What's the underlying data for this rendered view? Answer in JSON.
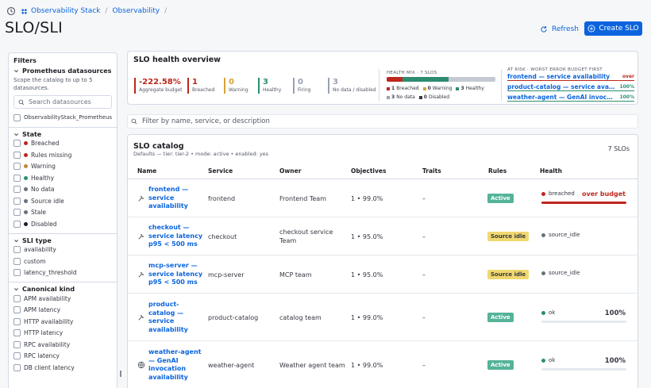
{
  "breadcrumb": {
    "items": [
      "Observability Stack",
      "Observability"
    ]
  },
  "page": {
    "title": "SLO/SLI"
  },
  "actions": {
    "refresh": "Refresh",
    "create": "Create SLO"
  },
  "sidebar": {
    "title": "Filters",
    "datasources": {
      "heading": "Prometheus datasources",
      "help": "Scope the catalog to up to 5 datasources.",
      "search_placeholder": "Search datasources",
      "items": [
        "ObservabilityStack_Prometheus"
      ]
    },
    "state": {
      "heading": "State",
      "items": [
        {
          "label": "Breached",
          "color": "#bd271e"
        },
        {
          "label": "Rules missing",
          "color": "#bd271e"
        },
        {
          "label": "Warning",
          "color": "#c4863a"
        },
        {
          "label": "Healthy",
          "color": "#2d8c6f"
        },
        {
          "label": "No data",
          "color": "#69707d"
        },
        {
          "label": "Source idle",
          "color": "#69707d"
        },
        {
          "label": "Stale",
          "color": "#69707d"
        },
        {
          "label": "Disabled",
          "color": "#1d1e24"
        }
      ]
    },
    "sli_type": {
      "heading": "SLI type",
      "items": [
        "availability",
        "custom",
        "latency_threshold"
      ]
    },
    "canonical": {
      "heading": "Canonical kind",
      "items": [
        "APM availability",
        "APM latency",
        "HTTP availability",
        "HTTP latency",
        "RPC availability",
        "RPC latency",
        "DB client latency"
      ]
    }
  },
  "health": {
    "title": "SLO health overview",
    "stats": [
      {
        "value": "-222.58%",
        "label": "Aggregate budget",
        "color": "#bd271e"
      },
      {
        "value": "1",
        "label": "Breached",
        "color": "#bd271e"
      },
      {
        "value": "0",
        "label": "Warning",
        "color": "#d6a335"
      },
      {
        "value": "3",
        "label": "Healthy",
        "color": "#2d8c6f"
      },
      {
        "value": "0",
        "label": "Firing",
        "color": "#98a2b3"
      },
      {
        "value": "3",
        "label": "No data / disabled",
        "color": "#98a2b3"
      }
    ],
    "mix": {
      "title": "HEALTH MIX · 7 SLOS",
      "segments": [
        {
          "count": 1,
          "color": "#bd271e"
        },
        {
          "count": 3,
          "color": "#2d8c6f"
        },
        {
          "count": 3,
          "color": "#c5c9d1"
        }
      ],
      "legend": [
        {
          "count": "1",
          "label": "Breached",
          "color": "#bd271e"
        },
        {
          "count": "0",
          "label": "Warning",
          "color": "#d6a335"
        },
        {
          "count": "3",
          "label": "Healthy",
          "color": "#2d8c6f"
        },
        {
          "count": "3",
          "label": "No data",
          "color": "#98a2b3"
        },
        {
          "count": "0",
          "label": "Disabled",
          "color": "#343741"
        }
      ]
    },
    "at_risk": {
      "title": "AT RISK · WORST ERROR BUDGET FIRST",
      "items": [
        {
          "name": "frontend — service availability",
          "tag": "over",
          "color": "#bd271e"
        },
        {
          "name": "product-catalog — service availability",
          "tag": "100%",
          "color": "#2d8c6f"
        },
        {
          "name": "weather-agent — GenAI invocation av...",
          "tag": "100%",
          "color": "#2d8c6f"
        }
      ]
    }
  },
  "filter": {
    "placeholder": "Filter by name, service, or description"
  },
  "catalog": {
    "title": "SLO catalog",
    "subtitle": "Defaults — tier: tier-2 • mode: active • enabled: yes",
    "count": "7 SLOs",
    "columns": [
      "Name",
      "Service",
      "Owner",
      "Objectives",
      "Traits",
      "Rules",
      "Health"
    ],
    "rows": [
      {
        "name": [
          "frontend —",
          "service",
          "availability"
        ],
        "service": "frontend",
        "owner": [
          "Frontend Team"
        ],
        "objectives": "1 • 99.0%",
        "traits": "–",
        "rules": "Active",
        "health": "breached",
        "state": "breached",
        "extra": "over budget",
        "progress": 1.0
      },
      {
        "name": [
          "checkout —",
          "service latency",
          "p95 < 500 ms"
        ],
        "service": "checkout",
        "owner": [
          "checkout service",
          "Team"
        ],
        "objectives": "1 • 95.0%",
        "traits": "–",
        "rules": "Source idle",
        "health": "source_idle",
        "state": "idle"
      },
      {
        "name": [
          "mcp-server —",
          "service latency",
          "p95 < 500 ms"
        ],
        "service": "mcp-server",
        "owner": [
          "MCP team"
        ],
        "objectives": "1 • 95.0%",
        "traits": "–",
        "rules": "Source idle",
        "health": "source_idle",
        "state": "idle"
      },
      {
        "name": [
          "product-",
          "catalog —",
          "service",
          "availability"
        ],
        "service": "product-catalog",
        "owner": [
          "catalog team"
        ],
        "objectives": "1 • 99.0%",
        "traits": "–",
        "rules": "Active",
        "health": "ok",
        "state": "ok",
        "extra": "100%",
        "progress": 1.0
      },
      {
        "name": [
          "weather-agent",
          "— GenAI",
          "invocation",
          "availability"
        ],
        "service": "weather-agent",
        "owner": [
          "Weather agent team"
        ],
        "objectives": "1 • 99.0%",
        "traits": "–",
        "rules": "Active",
        "health": "ok",
        "state": "ok",
        "extra": "100%",
        "progress": 1.0
      }
    ]
  }
}
